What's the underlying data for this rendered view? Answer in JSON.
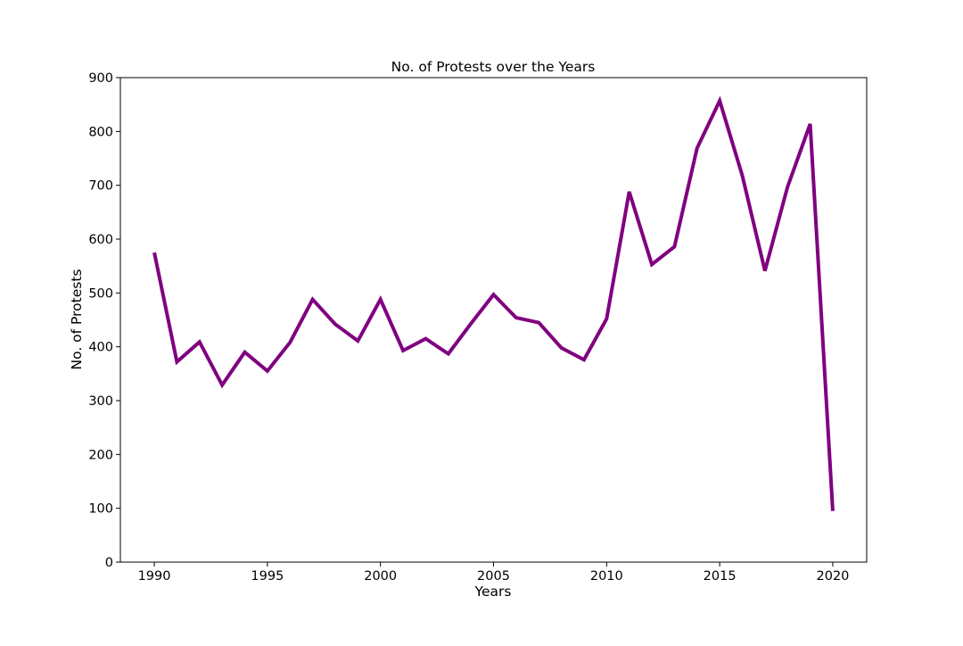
{
  "chart_data": {
    "type": "line",
    "title": "No. of Protests over the Years",
    "xlabel": "Years",
    "ylabel": "No. of Protests",
    "xlim": [
      1988.5,
      2021.5
    ],
    "ylim": [
      0,
      900
    ],
    "x_ticks": [
      1990,
      1995,
      2000,
      2005,
      2010,
      2015,
      2020
    ],
    "y_ticks": [
      0,
      100,
      200,
      300,
      400,
      500,
      600,
      700,
      800,
      900
    ],
    "grid": false,
    "legend": "none",
    "series": [
      {
        "color": "#800080",
        "x": [
          1990,
          1991,
          1992,
          1993,
          1994,
          1995,
          1996,
          1997,
          1998,
          1999,
          2000,
          2001,
          2002,
          2003,
          2004,
          2005,
          2006,
          2007,
          2008,
          2009,
          2010,
          2011,
          2012,
          2013,
          2014,
          2015,
          2016,
          2017,
          2018,
          2019,
          2020
        ],
        "y": [
          575,
          372,
          409,
          329,
          390,
          355,
          408,
          488,
          442,
          411,
          488,
          393,
          415,
          387,
          443,
          497,
          454,
          445,
          398,
          376,
          452,
          688,
          553,
          586,
          769,
          857,
          718,
          541,
          697,
          814,
          95
        ]
      }
    ]
  }
}
